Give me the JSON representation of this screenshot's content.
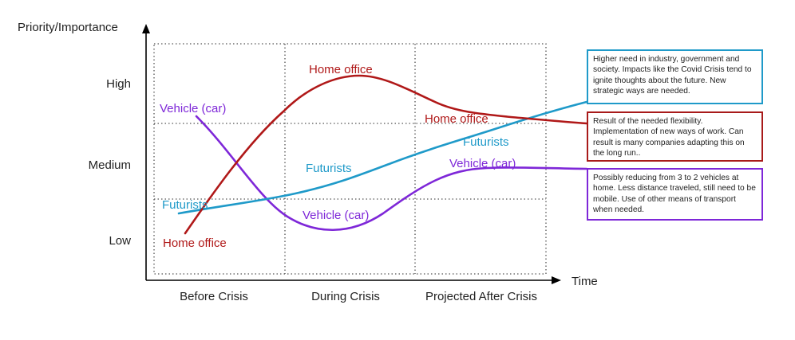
{
  "axes": {
    "y_title": "Priority/Importance",
    "x_title": "Time",
    "y_levels": [
      "Low",
      "Medium",
      "High"
    ],
    "x_periods": [
      "Before Crisis",
      "During Crisis",
      "Projected After Crisis"
    ]
  },
  "colors": {
    "home_office": "#b01818",
    "futurists": "#1f9ac9",
    "vehicle": "#7e27d8",
    "axis": "#000000",
    "grid": "#555555"
  },
  "series": [
    {
      "id": "home_office",
      "name": "Home office",
      "label_before": "Home office",
      "label_during": "Home office",
      "label_after": "Home office"
    },
    {
      "id": "vehicle",
      "name": "Vehicle (car)",
      "label_before": "Vehicle (car)",
      "label_during": "Vehicle (car)",
      "label_after": "Vehicle (car)"
    },
    {
      "id": "futurists",
      "name": "Futurists",
      "label_before": "Futurists",
      "label_during": "Futurists",
      "label_after": "Futurists"
    }
  ],
  "notes": {
    "futurists": "Higher need in industry, government and society. Impacts like the Covid Crisis tend to ignite thoughts about the future. New strategic ways are needed.",
    "home_office": "Result of the needed flexibility. Implementation of new ways of work. Can result is many companies adapting this on the long run..",
    "vehicle": "Possibly reducing from 3 to 2 vehicles at home. Less distance traveled, still need to be mobile. Use of other means of transport when needed."
  }
}
